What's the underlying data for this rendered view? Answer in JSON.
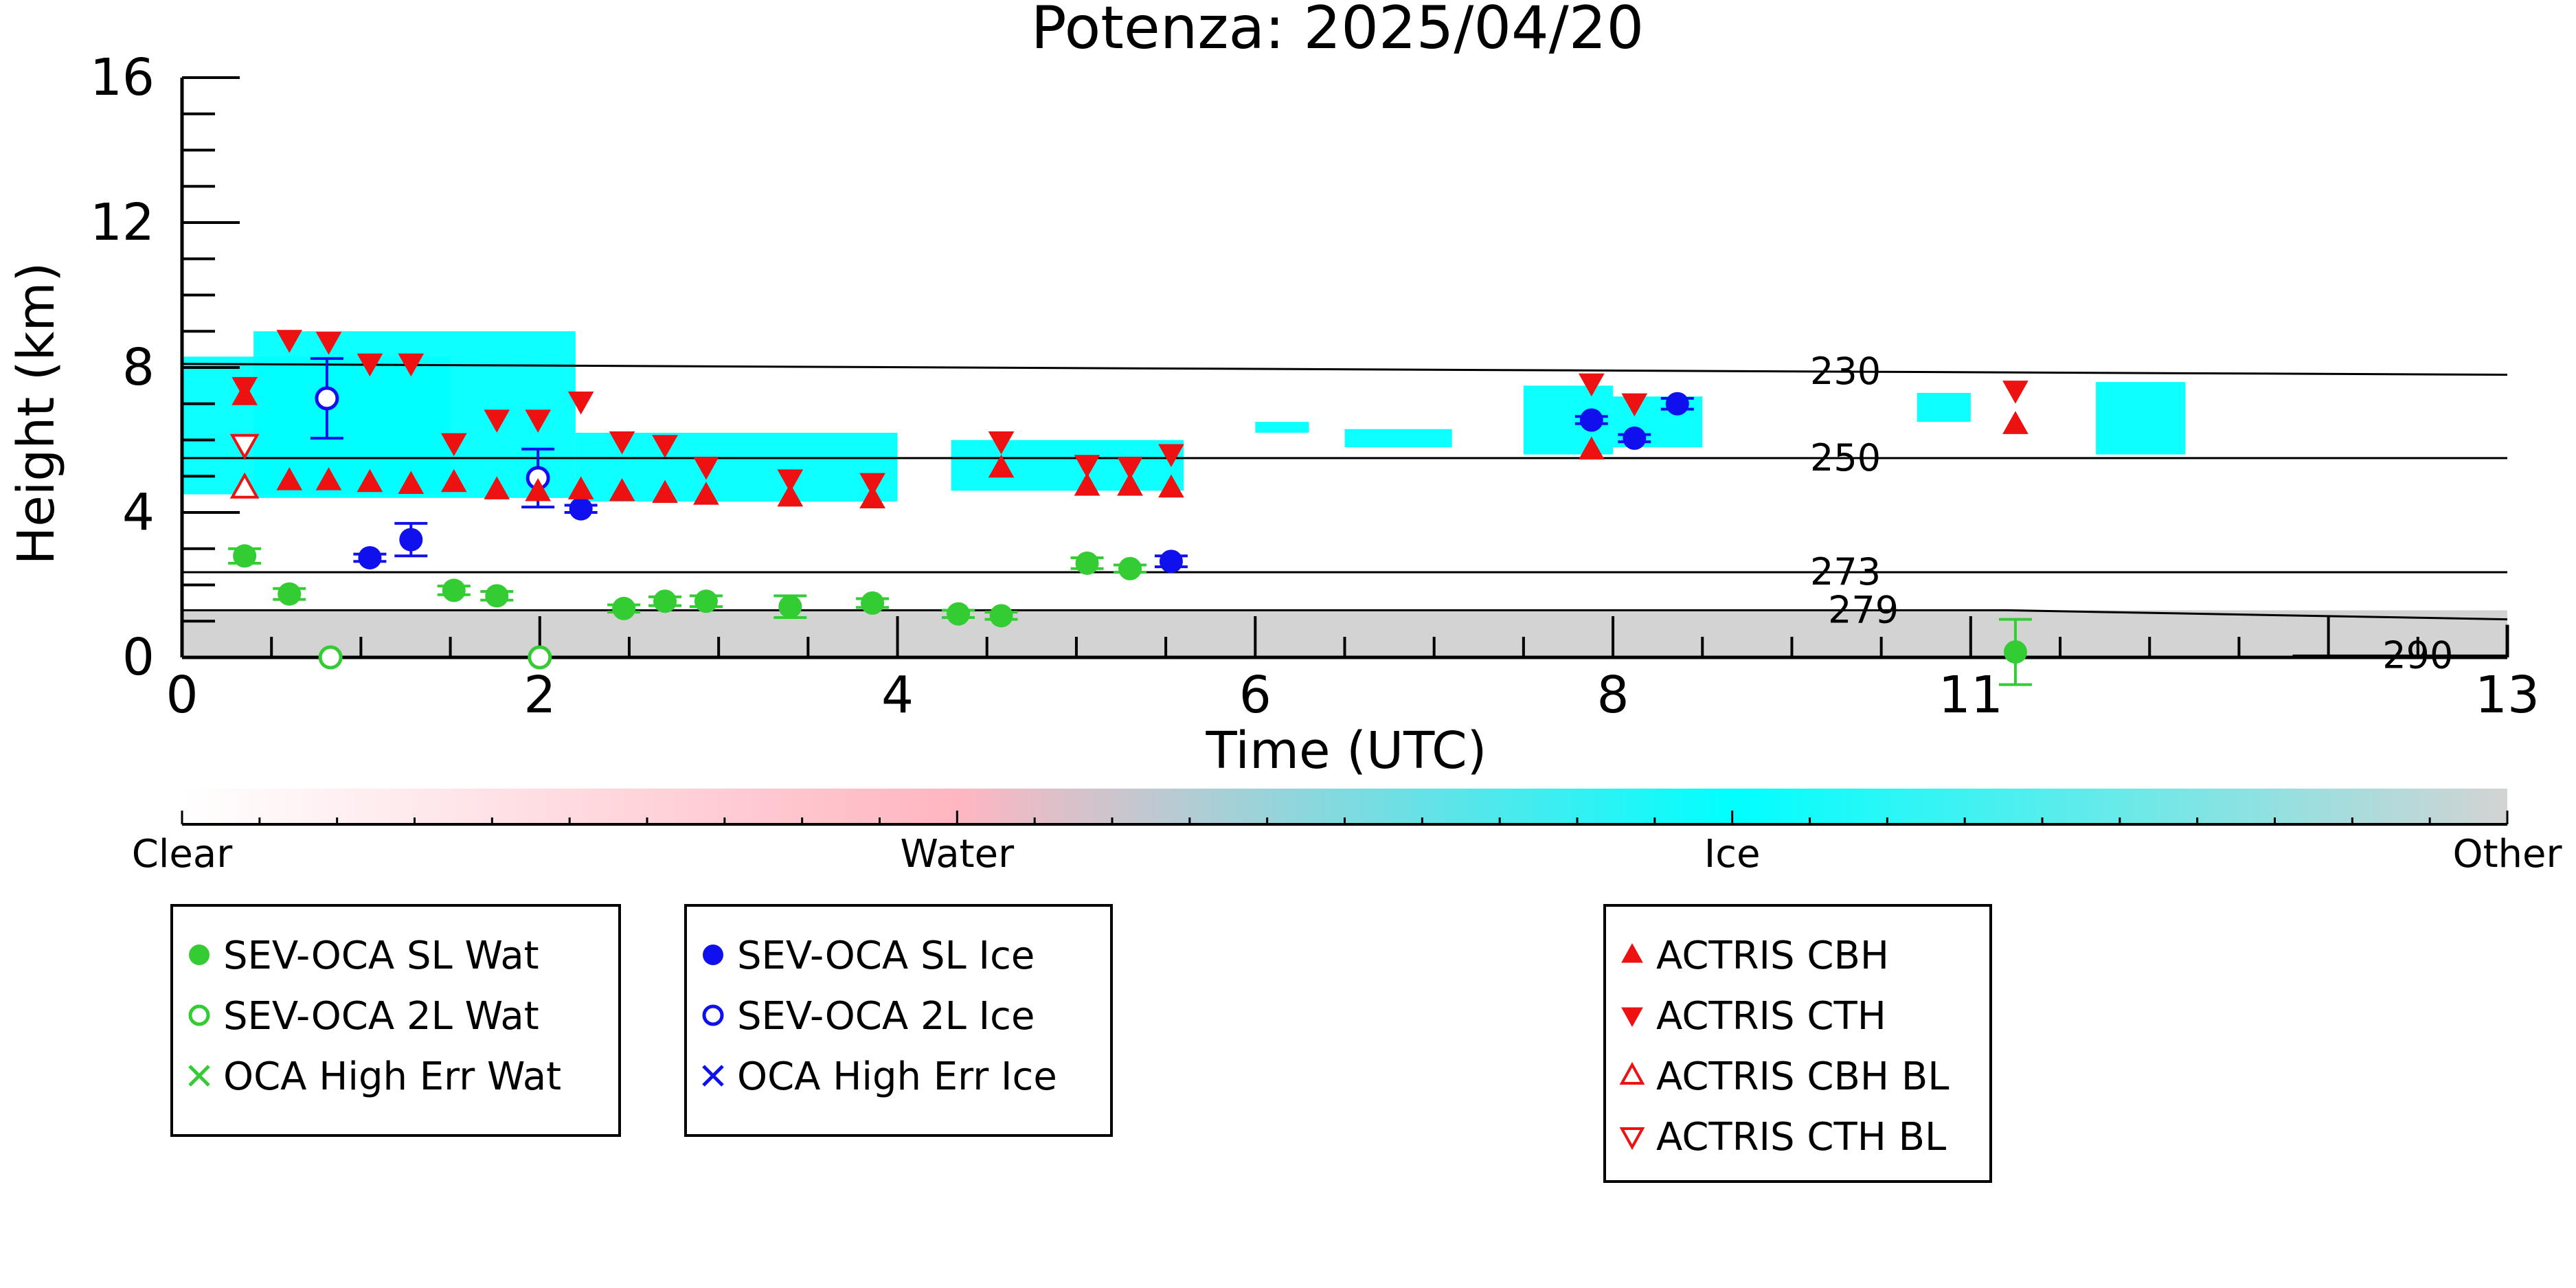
{
  "chart_data": {
    "type": "scatter",
    "title": "Potenza: 2025/04/20",
    "xlabel": "Time (UTC)",
    "ylabel": "Height (km)",
    "xlim": [
      0,
      13
    ],
    "ylim": [
      0,
      16
    ],
    "x_ticks": [
      0,
      2,
      4,
      6,
      8,
      11,
      13
    ],
    "x_tick_positions": [
      0,
      2,
      4,
      6,
      8,
      10,
      12
    ],
    "y_ticks": [
      0,
      4,
      8,
      12,
      16
    ],
    "grid": false,
    "colorbar": {
      "labels": [
        {
          "text": "Clear",
          "value": 0
        },
        {
          "text": "Water",
          "value": 1
        },
        {
          "text": "Ice",
          "value": 2
        },
        {
          "text": "Other",
          "value": 3
        }
      ],
      "colors": [
        "#ffffff",
        "#ffb6c1",
        "#00ffff",
        "#d3d3d3"
      ]
    },
    "temperature_contours": [
      {
        "label": "230",
        "x": [
          0,
          13
        ],
        "y": [
          8.1,
          7.8
        ],
        "label_x": 9.3
      },
      {
        "label": "250",
        "x": [
          0,
          13
        ],
        "y": [
          5.5,
          5.5
        ],
        "label_x": 9.3
      },
      {
        "label": "273",
        "x": [
          0,
          13
        ],
        "y": [
          2.35,
          2.35
        ],
        "label_x": 9.3
      },
      {
        "label": "279",
        "x": [
          0,
          10.2,
          13
        ],
        "y": [
          1.3,
          1.3,
          1.05
        ],
        "label_x": 9.4
      },
      {
        "label": "290",
        "x": [
          11.8,
          13
        ],
        "y": [
          0.05,
          0.05
        ],
        "label_x": 12.5
      }
    ],
    "background_mask": {
      "ice_patches": [
        {
          "x0": 0,
          "x1": 1.5,
          "y0": 4.5,
          "y1": 8.3
        },
        {
          "x0": 0.4,
          "x1": 2.2,
          "y0": 4.4,
          "y1": 9.0
        },
        {
          "x0": 2.2,
          "x1": 4.0,
          "y0": 4.3,
          "y1": 6.2
        },
        {
          "x0": 4.3,
          "x1": 5.6,
          "y0": 4.6,
          "y1": 6.0
        },
        {
          "x0": 6.0,
          "x1": 6.3,
          "y0": 6.2,
          "y1": 6.5
        },
        {
          "x0": 6.5,
          "x1": 7.1,
          "y0": 5.8,
          "y1": 6.3
        },
        {
          "x0": 7.5,
          "x1": 8.0,
          "y0": 5.6,
          "y1": 7.5
        },
        {
          "x0": 8.0,
          "x1": 8.5,
          "y0": 5.8,
          "y1": 7.2
        },
        {
          "x0": 9.7,
          "x1": 10.0,
          "y0": 6.5,
          "y1": 7.3
        },
        {
          "x0": 10.7,
          "x1": 11.2,
          "y0": 5.6,
          "y1": 7.6
        }
      ],
      "other_ground_band": {
        "x0": 0,
        "x1": 13,
        "y0": 0,
        "y1": 1.3
      }
    },
    "series": [
      {
        "name": "SEV-OCA SL Wat",
        "marker": "filled-circle",
        "color": "#33cc33",
        "points": [
          {
            "x": 0.35,
            "y": 2.8,
            "err": 0.2
          },
          {
            "x": 0.6,
            "y": 1.75,
            "err": 0.15
          },
          {
            "x": 1.52,
            "y": 1.85,
            "err": 0.12
          },
          {
            "x": 1.76,
            "y": 1.7,
            "err": 0.12
          },
          {
            "x": 2.47,
            "y": 1.35,
            "err": 0.1
          },
          {
            "x": 2.7,
            "y": 1.55,
            "err": 0.12
          },
          {
            "x": 2.93,
            "y": 1.55,
            "err": 0.15
          },
          {
            "x": 3.4,
            "y": 1.4,
            "err": 0.3
          },
          {
            "x": 3.86,
            "y": 1.5,
            "err": 0.12
          },
          {
            "x": 4.34,
            "y": 1.2,
            "err": 0.1
          },
          {
            "x": 4.58,
            "y": 1.15,
            "err": 0.1
          },
          {
            "x": 5.06,
            "y": 2.6,
            "err": 0.15
          },
          {
            "x": 5.3,
            "y": 2.45,
            "err": 0.1
          },
          {
            "x": 10.25,
            "y": 0.15,
            "err": 0.9
          }
        ]
      },
      {
        "name": "SEV-OCA 2L Wat",
        "marker": "open-circle",
        "color": "#33cc33",
        "points": [
          {
            "x": 0.83,
            "y": 0.0
          },
          {
            "x": 2.0,
            "y": 0.0
          }
        ]
      },
      {
        "name": "OCA High Err Wat",
        "marker": "x",
        "color": "#33cc33",
        "points": []
      },
      {
        "name": "SEV-OCA SL Ice",
        "marker": "filled-circle",
        "color": "#1010ee",
        "points": [
          {
            "x": 1.05,
            "y": 2.75,
            "err": 0.1
          },
          {
            "x": 1.28,
            "y": 3.25,
            "err": 0.45
          },
          {
            "x": 2.23,
            "y": 4.1,
            "err": 0.1
          },
          {
            "x": 5.53,
            "y": 2.65,
            "err": 0.15
          },
          {
            "x": 7.88,
            "y": 6.55,
            "err": 0.1
          },
          {
            "x": 8.12,
            "y": 6.05,
            "err": 0.1
          },
          {
            "x": 8.36,
            "y": 7.0,
            "err": 0.15
          }
        ]
      },
      {
        "name": "SEV-OCA 2L Ice",
        "marker": "open-circle",
        "color": "#1010ee",
        "points": [
          {
            "x": 0.81,
            "y": 7.15,
            "err": 1.1
          },
          {
            "x": 1.99,
            "y": 4.95,
            "err": 0.8
          }
        ]
      },
      {
        "name": "OCA High Err Ice",
        "marker": "x",
        "color": "#1010ee",
        "points": []
      },
      {
        "name": "ACTRIS CBH",
        "marker": "filled-triangle-up",
        "color": "#ee1111",
        "points": [
          {
            "x": 0.35,
            "y": 7.2
          },
          {
            "x": 0.6,
            "y": 4.85
          },
          {
            "x": 0.82,
            "y": 4.85
          },
          {
            "x": 1.05,
            "y": 4.8
          },
          {
            "x": 1.28,
            "y": 4.75
          },
          {
            "x": 1.52,
            "y": 4.8
          },
          {
            "x": 1.76,
            "y": 4.6
          },
          {
            "x": 1.99,
            "y": 4.55
          },
          {
            "x": 2.23,
            "y": 4.6
          },
          {
            "x": 2.46,
            "y": 4.55
          },
          {
            "x": 2.7,
            "y": 4.5
          },
          {
            "x": 2.93,
            "y": 4.45
          },
          {
            "x": 3.4,
            "y": 4.4
          },
          {
            "x": 3.86,
            "y": 4.35
          },
          {
            "x": 4.58,
            "y": 5.2
          },
          {
            "x": 5.06,
            "y": 4.7
          },
          {
            "x": 5.3,
            "y": 4.7
          },
          {
            "x": 5.53,
            "y": 4.65
          },
          {
            "x": 7.88,
            "y": 5.7
          },
          {
            "x": 10.25,
            "y": 6.4
          }
        ]
      },
      {
        "name": "ACTRIS CTH",
        "marker": "filled-triangle-down",
        "color": "#ee1111",
        "points": [
          {
            "x": 0.35,
            "y": 7.5
          },
          {
            "x": 0.6,
            "y": 8.8
          },
          {
            "x": 0.82,
            "y": 8.75
          },
          {
            "x": 1.05,
            "y": 8.15
          },
          {
            "x": 1.28,
            "y": 8.15
          },
          {
            "x": 1.52,
            "y": 5.95
          },
          {
            "x": 1.76,
            "y": 6.6
          },
          {
            "x": 1.99,
            "y": 6.6
          },
          {
            "x": 2.23,
            "y": 7.1
          },
          {
            "x": 2.46,
            "y": 6.0
          },
          {
            "x": 2.7,
            "y": 5.9
          },
          {
            "x": 2.93,
            "y": 5.3
          },
          {
            "x": 3.4,
            "y": 4.95
          },
          {
            "x": 3.86,
            "y": 4.85
          },
          {
            "x": 4.58,
            "y": 6.0
          },
          {
            "x": 5.06,
            "y": 5.35
          },
          {
            "x": 5.3,
            "y": 5.3
          },
          {
            "x": 5.53,
            "y": 5.65
          },
          {
            "x": 7.88,
            "y": 7.6
          },
          {
            "x": 8.12,
            "y": 7.05
          },
          {
            "x": 10.25,
            "y": 7.4
          }
        ]
      },
      {
        "name": "ACTRIS CBH BL",
        "marker": "open-triangle-up",
        "color": "#ee1111",
        "points": [
          {
            "x": 0.35,
            "y": 4.65
          }
        ]
      },
      {
        "name": "ACTRIS CTH BL",
        "marker": "open-triangle-down",
        "color": "#ee1111",
        "points": [
          {
            "x": 0.35,
            "y": 5.9
          }
        ]
      }
    ],
    "legend_groups": [
      [
        "SEV-OCA SL Wat",
        "SEV-OCA 2L Wat",
        "OCA High Err Wat"
      ],
      [
        "SEV-OCA SL Ice",
        "SEV-OCA 2L Ice",
        "OCA High Err Ice"
      ],
      [
        "ACTRIS CBH",
        "ACTRIS CTH",
        "ACTRIS CBH BL",
        "ACTRIS CTH BL"
      ]
    ]
  }
}
